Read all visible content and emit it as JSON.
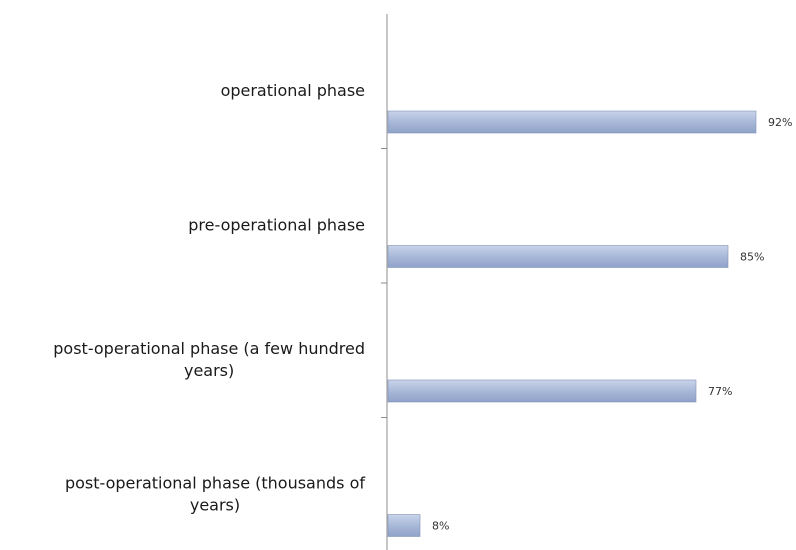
{
  "chart_data": {
    "type": "bar",
    "orientation": "horizontal",
    "categories": [
      "operational phase",
      "pre-operational phase",
      "post-operational phase (a few hundred years)",
      "post-operational phase (thousands of years)"
    ],
    "category_label_lines": [
      [
        "operational phase"
      ],
      [
        "pre-operational phase"
      ],
      [
        "post-operational phase (a few hundred",
        "years)"
      ],
      [
        "post-operational phase (thousands of",
        "years)"
      ]
    ],
    "values": [
      92,
      85,
      77,
      8
    ],
    "value_labels": [
      "92%",
      "85%",
      "77%",
      "8%"
    ],
    "unit": "%",
    "xlim": [
      0,
      100
    ],
    "grid": false,
    "legend": "none",
    "bar_color": "#a8b8d8"
  }
}
